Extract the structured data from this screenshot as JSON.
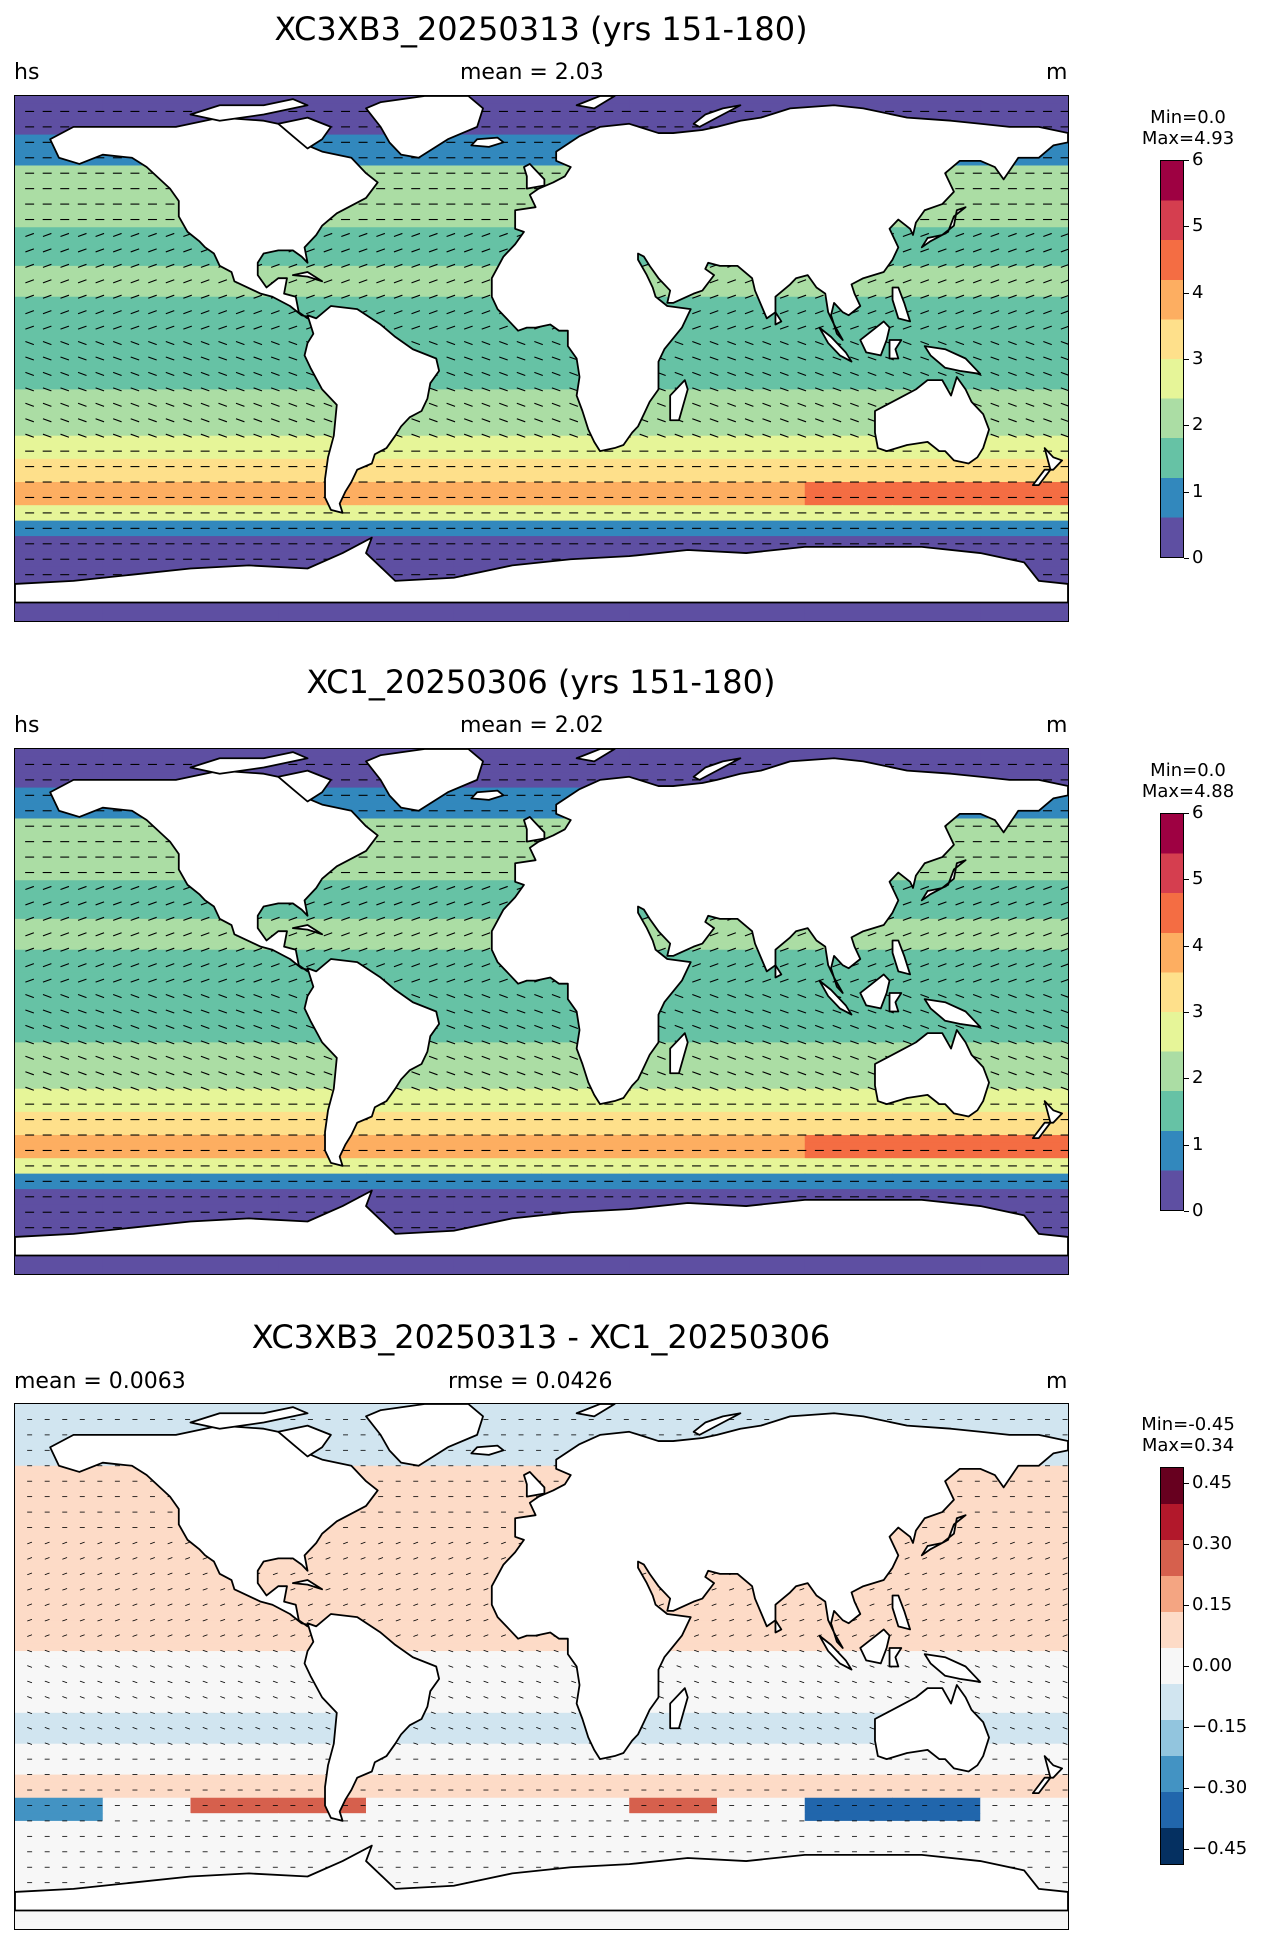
{
  "colors": {
    "wave_scale": [
      "#5e4fa2",
      "#3288bd",
      "#66c2a5",
      "#abdda4",
      "#e6f598",
      "#fee08b",
      "#fdae61",
      "#f46d43",
      "#d53e4f",
      "#9e0142"
    ],
    "diff_scale": [
      "#053061",
      "#2166ac",
      "#4393c3",
      "#92c5de",
      "#d1e5f0",
      "#f7f7f7",
      "#fddbc7",
      "#f4a582",
      "#d6604d",
      "#b2182b",
      "#67001f"
    ],
    "land": "#ffffff",
    "coastline": "#000000",
    "arrows": "#000000"
  },
  "panels": [
    {
      "title": "XC3XB3_20250313 (yrs 151-180)",
      "left_label": "hs",
      "center_label": "mean = 2.03",
      "right_label": "m",
      "minmax": [
        "Min=0.0",
        "Max=4.93"
      ],
      "colorbar_ticks": [
        "0",
        "1",
        "2",
        "3",
        "4",
        "5",
        "6"
      ]
    },
    {
      "title": "XC1_20250306 (yrs 151-180)",
      "left_label": "hs",
      "center_label": "mean = 2.02",
      "right_label": "m",
      "minmax": [
        "Min=0.0",
        "Max=4.88"
      ],
      "colorbar_ticks": [
        "0",
        "1",
        "2",
        "3",
        "4",
        "5",
        "6"
      ]
    },
    {
      "title": "XC3XB3_20250313 - XC1_20250306",
      "left_label": "mean = 0.0063",
      "center_label": "rmse = 0.0426",
      "right_label": "m",
      "minmax": [
        "Min=-0.45",
        "Max=0.34"
      ],
      "colorbar_ticks": [
        "−0.45",
        "−0.30",
        "−0.15",
        "0.00",
        "0.15",
        "0.30",
        "0.45"
      ]
    }
  ]
}
